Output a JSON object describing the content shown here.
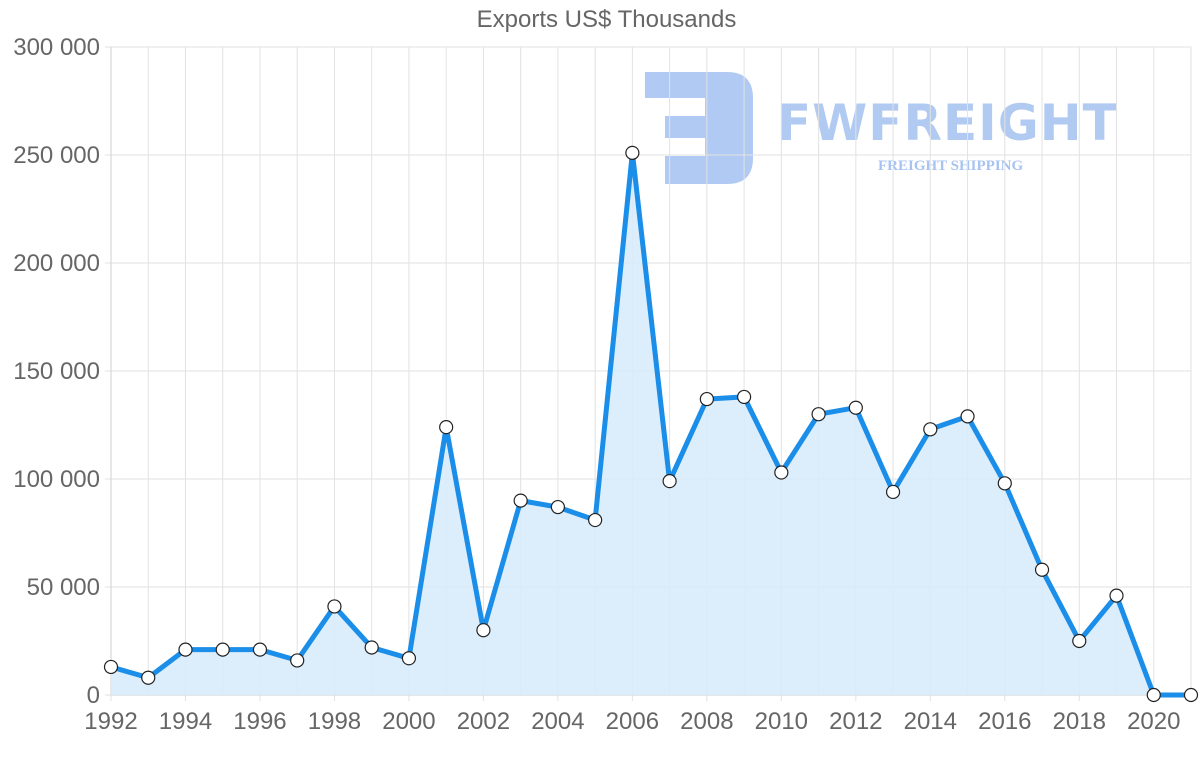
{
  "title": "Exports US$ Thousands",
  "watermark": {
    "brand": "FWFREIGHT",
    "tagline": "FREIGHT SHIPPING"
  },
  "colors": {
    "line": "#1a8ee8",
    "fill": "#d8ebfb",
    "grid": "#e2e2e2",
    "text": "#666666",
    "watermark": "#9ebdf0"
  },
  "chart_data": {
    "type": "area",
    "title": "Exports US$ Thousands",
    "xlabel": "",
    "ylabel": "",
    "x": [
      1992,
      1993,
      1994,
      1995,
      1996,
      1997,
      1998,
      1999,
      2000,
      2001,
      2002,
      2003,
      2004,
      2005,
      2006,
      2007,
      2008,
      2009,
      2010,
      2011,
      2012,
      2013,
      2014,
      2015,
      2016,
      2017,
      2018,
      2019,
      2020,
      2021
    ],
    "series": [
      {
        "name": "Exports US$ Thousands",
        "values": [
          13000,
          8000,
          21000,
          21000,
          21000,
          16000,
          41000,
          22000,
          17000,
          124000,
          30000,
          90000,
          87000,
          81000,
          251000,
          99000,
          137000,
          138000,
          103000,
          130000,
          133000,
          94000,
          123000,
          129000,
          98000,
          58000,
          25000,
          46000,
          0,
          0
        ]
      }
    ],
    "ylim": [
      0,
      300000
    ],
    "yticks": [
      "0",
      "50 000",
      "100 000",
      "150 000",
      "200 000",
      "250 000",
      "300 000"
    ],
    "xticks": [
      "1992",
      "1994",
      "1996",
      "1998",
      "2000",
      "2002",
      "2004",
      "2006",
      "2008",
      "2010",
      "2012",
      "2014",
      "2016",
      "2018",
      "2020"
    ],
    "grid": true,
    "legend": "none"
  }
}
